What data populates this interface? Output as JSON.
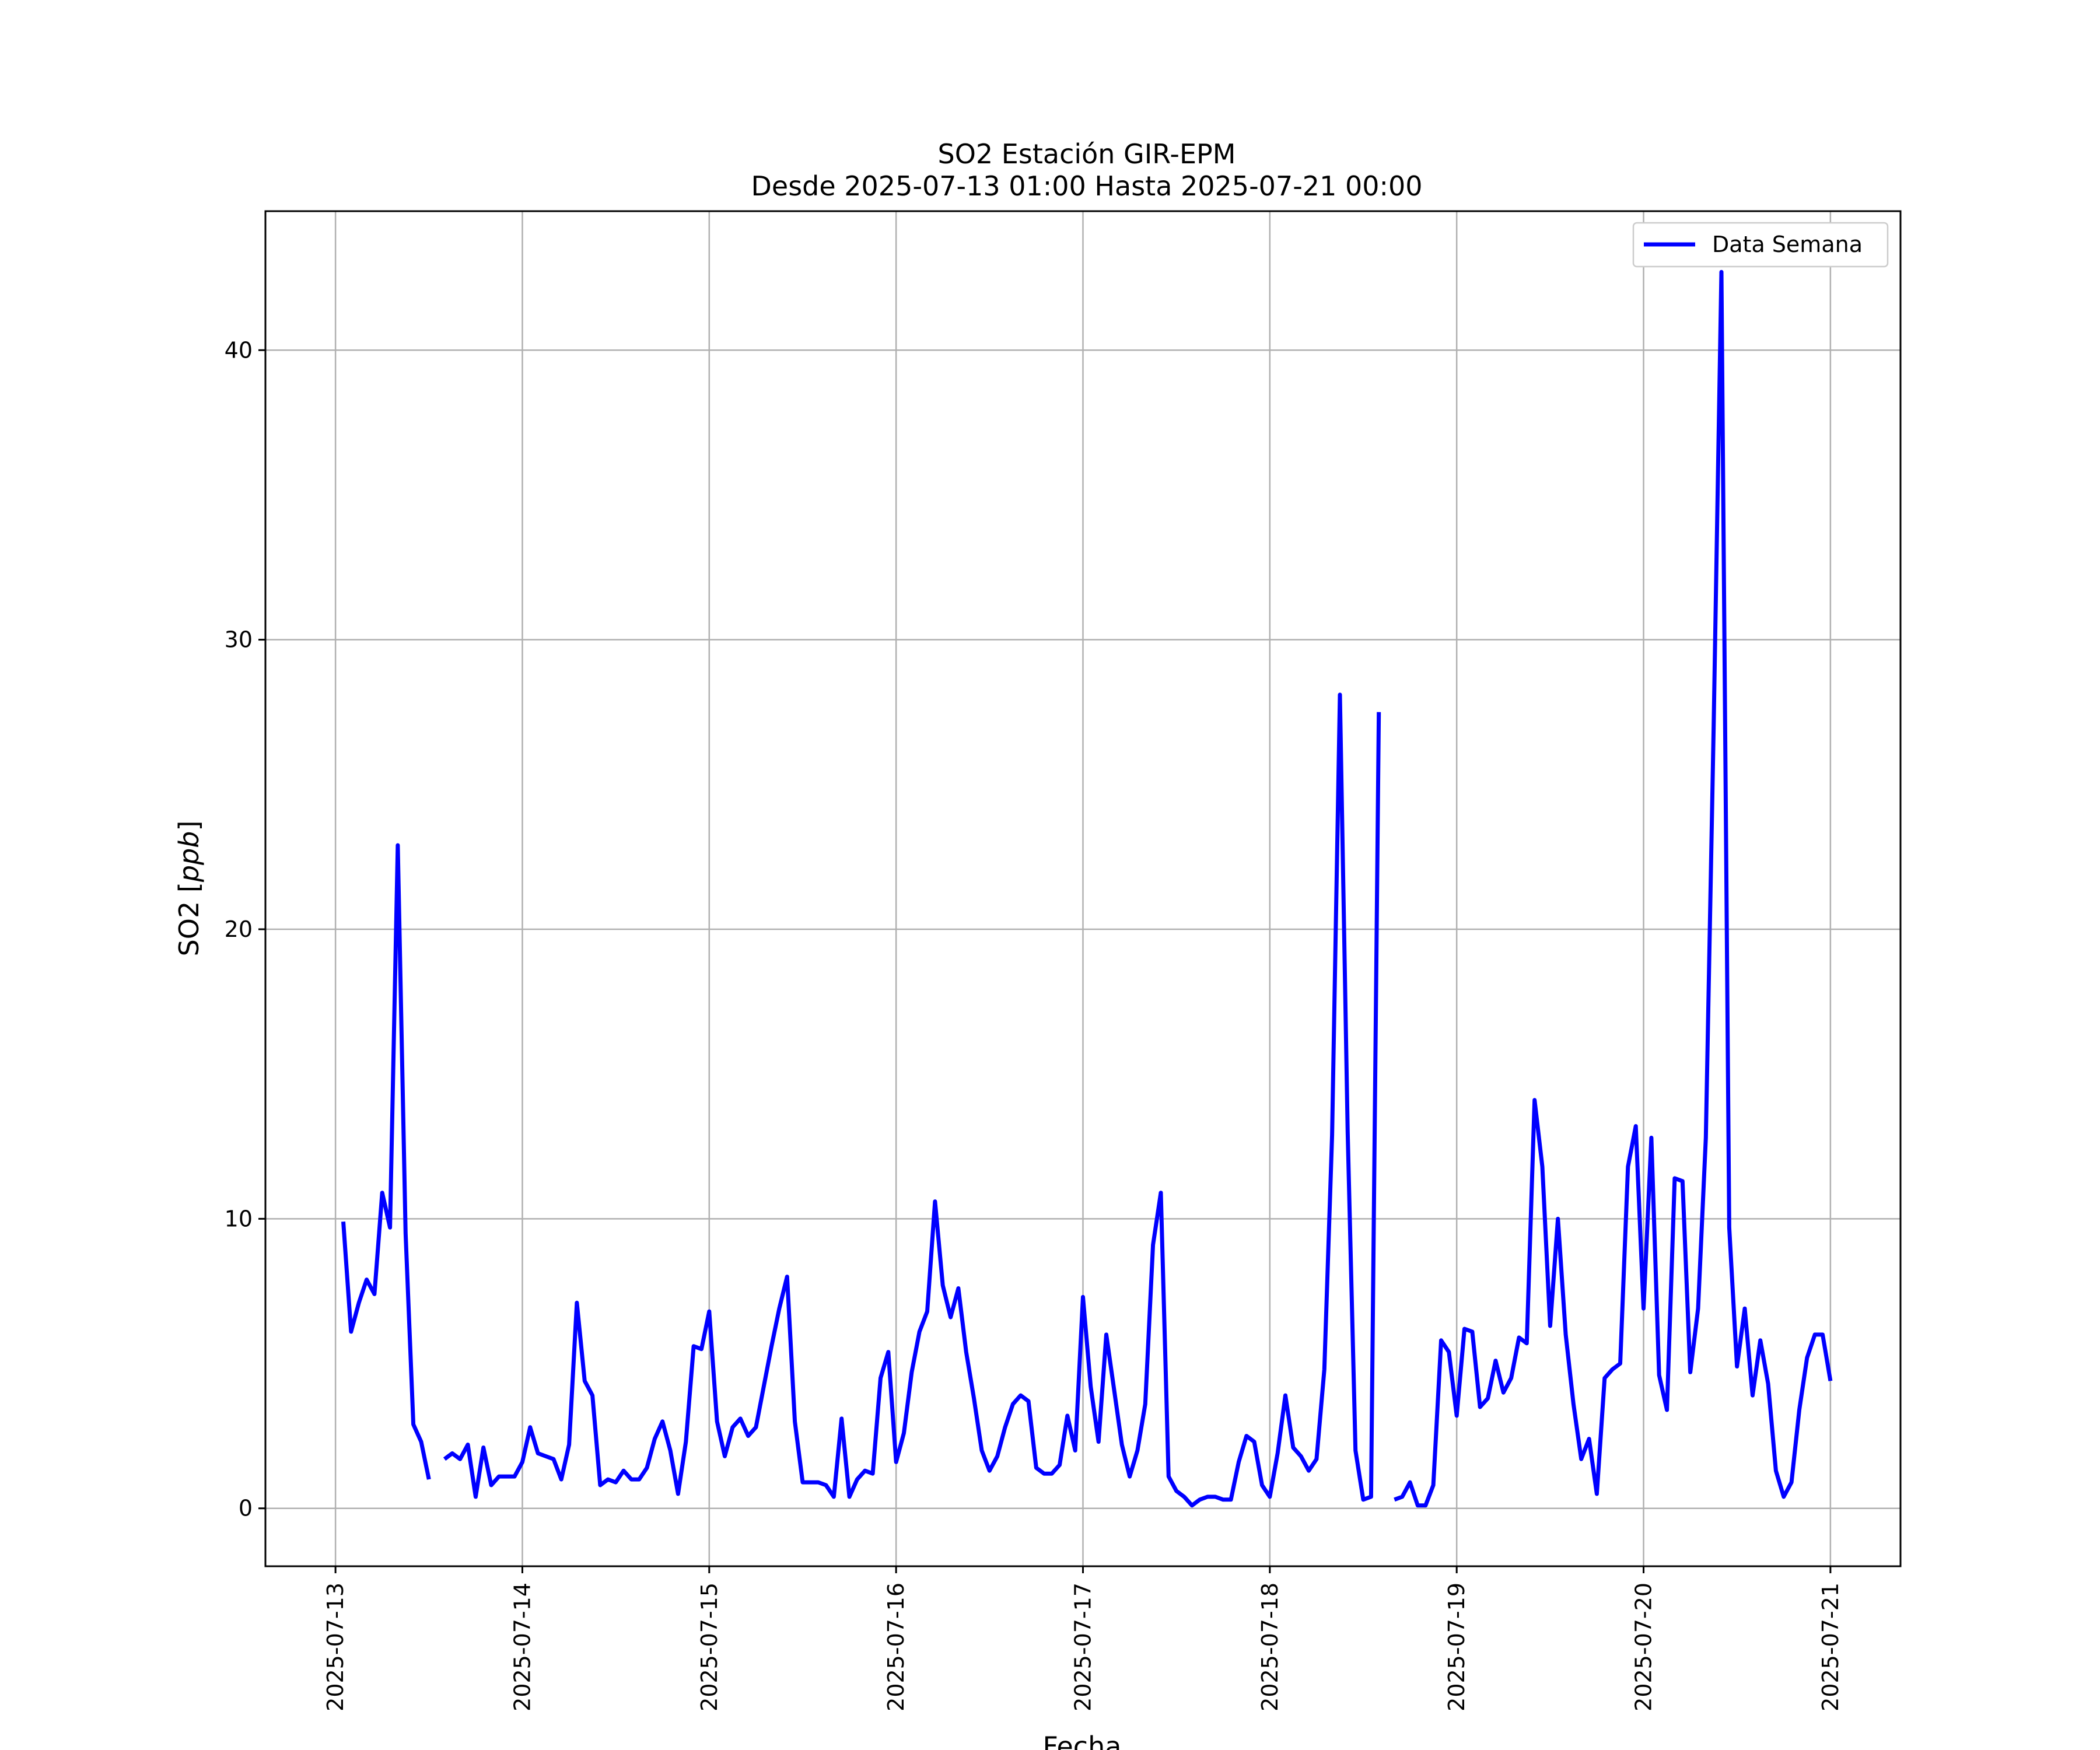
{
  "chart_data": {
    "type": "line",
    "title": "SO2 Estación GIR-EPM",
    "subtitle": "Desde 2025-07-13 01:00 Hasta 2025-07-21 00:00",
    "xlabel": "Fecha",
    "ylabel_prefix": "SO2 [",
    "ylabel_unit": "ppb",
    "ylabel_suffix": "]",
    "x_range": [
      "2025-07-12 15:00",
      "2025-07-21 09:00"
    ],
    "ylim": [
      -2,
      44.8
    ],
    "x_ticks": [
      "2025-07-13",
      "2025-07-14",
      "2025-07-15",
      "2025-07-16",
      "2025-07-17",
      "2025-07-18",
      "2025-07-19",
      "2025-07-20",
      "2025-07-21"
    ],
    "y_ticks": [
      0,
      10,
      20,
      30,
      40
    ],
    "grid": true,
    "legend_position": "top-right",
    "line_color": "#0000ff",
    "series": [
      {
        "name": "Data Semana",
        "points": [
          [
            "2025-07-13 01:00",
            9.9
          ],
          [
            "2025-07-13 02:00",
            6.1
          ],
          [
            "2025-07-13 03:00",
            7.1
          ],
          [
            "2025-07-13 04:00",
            7.9
          ],
          [
            "2025-07-13 05:00",
            7.4
          ],
          [
            "2025-07-13 06:00",
            10.9
          ],
          [
            "2025-07-13 07:00",
            9.7
          ],
          [
            "2025-07-13 08:00",
            22.9
          ],
          [
            "2025-07-13 09:00",
            9.5
          ],
          [
            "2025-07-13 10:00",
            2.9
          ],
          [
            "2025-07-13 11:00",
            2.3
          ],
          [
            "2025-07-13 12:00",
            1.0
          ],
          [
            "2025-07-13 13:00",
            null
          ],
          [
            "2025-07-13 14:00",
            1.7
          ],
          [
            "2025-07-13 15:00",
            1.9
          ],
          [
            "2025-07-13 16:00",
            1.7
          ],
          [
            "2025-07-13 17:00",
            2.2
          ],
          [
            "2025-07-13 18:00",
            0.4
          ],
          [
            "2025-07-13 19:00",
            2.1
          ],
          [
            "2025-07-13 20:00",
            0.8
          ],
          [
            "2025-07-13 21:00",
            1.1
          ],
          [
            "2025-07-13 22:00",
            1.1
          ],
          [
            "2025-07-13 23:00",
            1.1
          ],
          [
            "2025-07-14 00:00",
            1.6
          ],
          [
            "2025-07-14 01:00",
            2.8
          ],
          [
            "2025-07-14 02:00",
            1.9
          ],
          [
            "2025-07-14 03:00",
            1.8
          ],
          [
            "2025-07-14 04:00",
            1.7
          ],
          [
            "2025-07-14 05:00",
            1.0
          ],
          [
            "2025-07-14 06:00",
            2.2
          ],
          [
            "2025-07-14 07:00",
            7.1
          ],
          [
            "2025-07-14 08:00",
            4.4
          ],
          [
            "2025-07-14 09:00",
            3.9
          ],
          [
            "2025-07-14 10:00",
            0.8
          ],
          [
            "2025-07-14 11:00",
            1.0
          ],
          [
            "2025-07-14 12:00",
            0.9
          ],
          [
            "2025-07-14 13:00",
            1.3
          ],
          [
            "2025-07-14 14:00",
            1.0
          ],
          [
            "2025-07-14 15:00",
            1.0
          ],
          [
            "2025-07-14 16:00",
            1.4
          ],
          [
            "2025-07-14 17:00",
            2.4
          ],
          [
            "2025-07-14 18:00",
            3.0
          ],
          [
            "2025-07-14 19:00",
            2.0
          ],
          [
            "2025-07-14 20:00",
            0.5
          ],
          [
            "2025-07-14 21:00",
            2.3
          ],
          [
            "2025-07-14 22:00",
            5.6
          ],
          [
            "2025-07-14 23:00",
            5.5
          ],
          [
            "2025-07-15 00:00",
            6.8
          ],
          [
            "2025-07-15 01:00",
            3.0
          ],
          [
            "2025-07-15 02:00",
            1.8
          ],
          [
            "2025-07-15 03:00",
            2.8
          ],
          [
            "2025-07-15 04:00",
            3.1
          ],
          [
            "2025-07-15 05:00",
            2.5
          ],
          [
            "2025-07-15 06:00",
            2.8
          ],
          [
            "2025-07-15 07:00",
            4.2
          ],
          [
            "2025-07-15 08:00",
            5.6
          ],
          [
            "2025-07-15 09:00",
            6.9
          ],
          [
            "2025-07-15 10:00",
            8.0
          ],
          [
            "2025-07-15 11:00",
            3.0
          ],
          [
            "2025-07-15 12:00",
            0.9
          ],
          [
            "2025-07-15 13:00",
            0.9
          ],
          [
            "2025-07-15 14:00",
            0.9
          ],
          [
            "2025-07-15 15:00",
            0.8
          ],
          [
            "2025-07-15 16:00",
            0.4
          ],
          [
            "2025-07-15 17:00",
            3.1
          ],
          [
            "2025-07-15 18:00",
            0.4
          ],
          [
            "2025-07-15 19:00",
            1.0
          ],
          [
            "2025-07-15 20:00",
            1.3
          ],
          [
            "2025-07-15 21:00",
            1.2
          ],
          [
            "2025-07-15 22:00",
            4.5
          ],
          [
            "2025-07-15 23:00",
            5.4
          ],
          [
            "2025-07-16 00:00",
            1.6
          ],
          [
            "2025-07-16 01:00",
            2.6
          ],
          [
            "2025-07-16 02:00",
            4.7
          ],
          [
            "2025-07-16 03:00",
            6.1
          ],
          [
            "2025-07-16 04:00",
            6.8
          ],
          [
            "2025-07-16 05:00",
            10.6
          ],
          [
            "2025-07-16 06:00",
            7.7
          ],
          [
            "2025-07-16 07:00",
            6.6
          ],
          [
            "2025-07-16 08:00",
            7.6
          ],
          [
            "2025-07-16 09:00",
            5.4
          ],
          [
            "2025-07-16 10:00",
            3.8
          ],
          [
            "2025-07-16 11:00",
            2.0
          ],
          [
            "2025-07-16 12:00",
            1.3
          ],
          [
            "2025-07-16 13:00",
            1.8
          ],
          [
            "2025-07-16 14:00",
            2.8
          ],
          [
            "2025-07-16 15:00",
            3.6
          ],
          [
            "2025-07-16 16:00",
            3.9
          ],
          [
            "2025-07-16 17:00",
            3.7
          ],
          [
            "2025-07-16 18:00",
            1.4
          ],
          [
            "2025-07-16 19:00",
            1.2
          ],
          [
            "2025-07-16 20:00",
            1.2
          ],
          [
            "2025-07-16 21:00",
            1.5
          ],
          [
            "2025-07-16 22:00",
            3.2
          ],
          [
            "2025-07-16 23:00",
            2.0
          ],
          [
            "2025-07-17 00:00",
            7.3
          ],
          [
            "2025-07-17 01:00",
            4.2
          ],
          [
            "2025-07-17 02:00",
            2.3
          ],
          [
            "2025-07-17 03:00",
            6.0
          ],
          [
            "2025-07-17 04:00",
            4.1
          ],
          [
            "2025-07-17 05:00",
            2.2
          ],
          [
            "2025-07-17 06:00",
            1.1
          ],
          [
            "2025-07-17 07:00",
            2.0
          ],
          [
            "2025-07-17 08:00",
            3.6
          ],
          [
            "2025-07-17 09:00",
            9.1
          ],
          [
            "2025-07-17 10:00",
            10.9
          ],
          [
            "2025-07-17 11:00",
            1.1
          ],
          [
            "2025-07-17 12:00",
            0.6
          ],
          [
            "2025-07-17 13:00",
            0.4
          ],
          [
            "2025-07-17 14:00",
            0.1
          ],
          [
            "2025-07-17 15:00",
            0.3
          ],
          [
            "2025-07-17 16:00",
            0.4
          ],
          [
            "2025-07-17 17:00",
            0.4
          ],
          [
            "2025-07-17 18:00",
            0.3
          ],
          [
            "2025-07-17 19:00",
            0.3
          ],
          [
            "2025-07-17 20:00",
            1.6
          ],
          [
            "2025-07-17 21:00",
            2.5
          ],
          [
            "2025-07-17 22:00",
            2.3
          ],
          [
            "2025-07-17 23:00",
            0.8
          ],
          [
            "2025-07-18 00:00",
            0.4
          ],
          [
            "2025-07-18 01:00",
            1.9
          ],
          [
            "2025-07-18 02:00",
            3.9
          ],
          [
            "2025-07-18 03:00",
            2.1
          ],
          [
            "2025-07-18 04:00",
            1.8
          ],
          [
            "2025-07-18 05:00",
            1.3
          ],
          [
            "2025-07-18 06:00",
            1.7
          ],
          [
            "2025-07-18 07:00",
            4.8
          ],
          [
            "2025-07-18 08:00",
            12.9
          ],
          [
            "2025-07-18 09:00",
            28.1
          ],
          [
            "2025-07-18 10:00",
            13.0
          ],
          [
            "2025-07-18 11:00",
            2.0
          ],
          [
            "2025-07-18 12:00",
            0.3
          ],
          [
            "2025-07-18 13:00",
            0.4
          ],
          [
            "2025-07-18 14:00",
            27.5
          ],
          [
            "2025-07-18 15:00",
            null
          ],
          [
            "2025-07-18 16:00",
            0.3
          ],
          [
            "2025-07-18 17:00",
            0.4
          ],
          [
            "2025-07-18 18:00",
            0.9
          ],
          [
            "2025-07-18 19:00",
            0.1
          ],
          [
            "2025-07-18 20:00",
            0.1
          ],
          [
            "2025-07-18 21:00",
            0.8
          ],
          [
            "2025-07-18 22:00",
            5.8
          ],
          [
            "2025-07-18 23:00",
            5.4
          ],
          [
            "2025-07-19 00:00",
            3.2
          ],
          [
            "2025-07-19 01:00",
            6.2
          ],
          [
            "2025-07-19 02:00",
            6.1
          ],
          [
            "2025-07-19 03:00",
            3.5
          ],
          [
            "2025-07-19 04:00",
            3.8
          ],
          [
            "2025-07-19 05:00",
            5.1
          ],
          [
            "2025-07-19 06:00",
            4.0
          ],
          [
            "2025-07-19 07:00",
            4.5
          ],
          [
            "2025-07-19 08:00",
            5.9
          ],
          [
            "2025-07-19 09:00",
            5.7
          ],
          [
            "2025-07-19 10:00",
            14.1
          ],
          [
            "2025-07-19 11:00",
            11.8
          ],
          [
            "2025-07-19 12:00",
            6.3
          ],
          [
            "2025-07-19 13:00",
            10.0
          ],
          [
            "2025-07-19 14:00",
            6.0
          ],
          [
            "2025-07-19 15:00",
            3.6
          ],
          [
            "2025-07-19 16:00",
            1.7
          ],
          [
            "2025-07-19 17:00",
            2.4
          ],
          [
            "2025-07-19 18:00",
            0.5
          ],
          [
            "2025-07-19 19:00",
            4.5
          ],
          [
            "2025-07-19 20:00",
            4.8
          ],
          [
            "2025-07-19 21:00",
            5.0
          ],
          [
            "2025-07-19 22:00",
            11.8
          ],
          [
            "2025-07-19 23:00",
            13.2
          ],
          [
            "2025-07-20 00:00",
            6.9
          ],
          [
            "2025-07-20 01:00",
            12.8
          ],
          [
            "2025-07-20 02:00",
            4.6
          ],
          [
            "2025-07-20 03:00",
            3.4
          ],
          [
            "2025-07-20 04:00",
            11.4
          ],
          [
            "2025-07-20 05:00",
            11.3
          ],
          [
            "2025-07-20 06:00",
            4.7
          ],
          [
            "2025-07-20 07:00",
            6.9
          ],
          [
            "2025-07-20 08:00",
            12.8
          ],
          [
            "2025-07-20 09:00",
            27.0
          ],
          [
            "2025-07-20 10:00",
            42.7
          ],
          [
            "2025-07-20 11:00",
            9.7
          ],
          [
            "2025-07-20 12:00",
            4.9
          ],
          [
            "2025-07-20 13:00",
            6.9
          ],
          [
            "2025-07-20 14:00",
            3.9
          ],
          [
            "2025-07-20 15:00",
            5.8
          ],
          [
            "2025-07-20 16:00",
            4.3
          ],
          [
            "2025-07-20 17:00",
            1.3
          ],
          [
            "2025-07-20 18:00",
            0.4
          ],
          [
            "2025-07-20 19:00",
            0.9
          ],
          [
            "2025-07-20 20:00",
            3.4
          ],
          [
            "2025-07-20 21:00",
            5.2
          ],
          [
            "2025-07-20 22:00",
            6.0
          ],
          [
            "2025-07-20 23:00",
            6.0
          ],
          [
            "2025-07-21 00:00",
            4.4
          ]
        ]
      }
    ]
  }
}
